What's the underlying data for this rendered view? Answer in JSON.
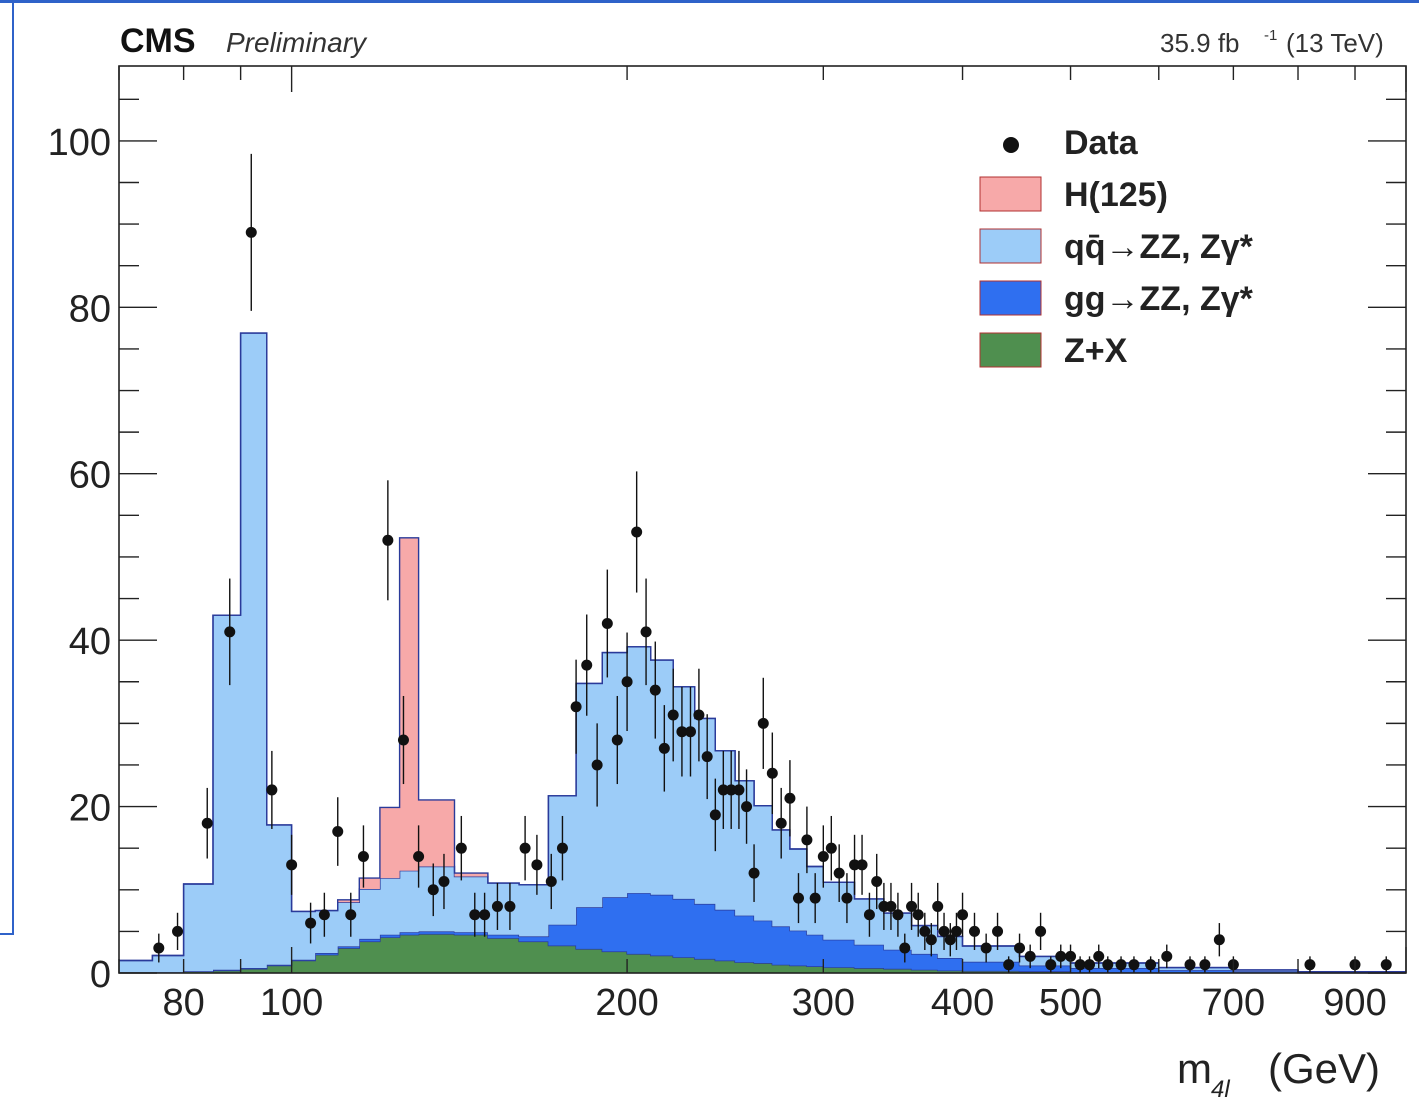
{
  "experiment": "CMS",
  "status": "Preliminary",
  "luminosity": "35.9 fb",
  "luminosity_exp": "-1",
  "energy": "(13 TeV)",
  "chart_data": {
    "type": "histogram",
    "xlabel_main": "m",
    "xlabel_sub": "4l",
    "xlabel_unit": "(GeV)",
    "ylabel": "",
    "x_scale": "log",
    "xlim": [
      70,
      1000
    ],
    "ylim": [
      0,
      109
    ],
    "grid": false,
    "legend_position": "top-right",
    "x_ticks": [
      80,
      100,
      200,
      300,
      400,
      500,
      700,
      900
    ],
    "y_ticks": [
      0,
      20,
      40,
      60,
      80,
      100
    ],
    "legend": [
      {
        "label": "Data",
        "kind": "marker",
        "color": "#111111"
      },
      {
        "label": "H(125)",
        "kind": "box",
        "color": "#f7a9a9"
      },
      {
        "label": "qq̄→ZZ, Zγ*",
        "kind": "box",
        "color": "#9cccf8"
      },
      {
        "label": "gg→ZZ, Zγ*",
        "kind": "box",
        "color": "#2f6ff0"
      },
      {
        "label": "Z+X",
        "kind": "box",
        "color": "#4f8f4f"
      }
    ],
    "bin_edges": [
      70,
      75,
      80,
      85,
      90,
      95,
      100,
      105,
      110,
      115,
      120,
      125,
      130,
      140,
      150,
      160,
      170,
      180,
      190,
      200,
      210,
      220,
      230,
      240,
      250,
      260,
      270,
      280,
      290,
      300,
      320,
      340,
      360,
      380,
      400,
      450,
      500,
      600,
      700,
      800,
      1000
    ],
    "stack": [
      {
        "name": "Z+X",
        "color": "#4f8f4f",
        "values": [
          0.1,
          0.1,
          0.2,
          0.3,
          0.5,
          0.9,
          1.5,
          2.2,
          3.0,
          3.8,
          4.3,
          4.6,
          4.7,
          4.6,
          4.2,
          3.8,
          3.3,
          2.9,
          2.6,
          2.3,
          2.1,
          1.9,
          1.7,
          1.5,
          1.3,
          1.2,
          1.0,
          0.9,
          0.8,
          0.7,
          0.6,
          0.5,
          0.4,
          0.3,
          0.25,
          0.2,
          0.1,
          0.05,
          0.02,
          0.01
        ]
      },
      {
        "name": "gg→ZZ, Zγ*",
        "color": "#2f6ff0",
        "values": [
          0.0,
          0.0,
          0.0,
          0.1,
          0.1,
          0.1,
          0.1,
          0.2,
          0.2,
          0.3,
          0.3,
          0.3,
          0.3,
          0.3,
          0.4,
          0.6,
          2.5,
          5.0,
          6.5,
          7.3,
          7.3,
          7.0,
          6.6,
          6.1,
          5.6,
          5.1,
          4.6,
          4.2,
          3.8,
          3.3,
          2.8,
          2.3,
          1.9,
          1.5,
          1.1,
          0.7,
          0.5,
          0.3,
          0.2,
          0.1
        ]
      },
      {
        "name": "qq̄→ZZ, Zγ*",
        "color": "#9cccf8",
        "values": [
          1.4,
          2.0,
          10.5,
          42.6,
          76.3,
          16.8,
          5.8,
          5.1,
          5.3,
          6.0,
          6.8,
          7.4,
          7.8,
          6.7,
          6.2,
          6.2,
          15.5,
          26.9,
          29.4,
          29.6,
          28.2,
          25.5,
          22.3,
          19.1,
          16.2,
          13.8,
          11.6,
          9.8,
          8.2,
          6.9,
          5.5,
          4.4,
          3.4,
          2.6,
          1.9,
          1.1,
          0.6,
          0.3,
          0.15,
          0.05
        ]
      },
      {
        "name": "H(125)",
        "color": "#f7a9a9",
        "values": [
          0.0,
          0.0,
          0.0,
          0.0,
          0.0,
          0.0,
          0.0,
          0.0,
          0.3,
          1.3,
          8.5,
          40.0,
          8.0,
          0.4,
          0.0,
          0.0,
          0.0,
          0.0,
          0.0,
          0.0,
          0.0,
          0.0,
          0.0,
          0.0,
          0.0,
          0.0,
          0.0,
          0.0,
          0.0,
          0.0,
          0.0,
          0.0,
          0.0,
          0.0,
          0.0,
          0.0,
          0.0,
          0.0,
          0.0,
          0.0
        ]
      }
    ],
    "data": [
      {
        "x": 76,
        "y": 3
      },
      {
        "x": 79,
        "y": 5
      },
      {
        "x": 84,
        "y": 18
      },
      {
        "x": 88,
        "y": 41
      },
      {
        "x": 92,
        "y": 89
      },
      {
        "x": 96,
        "y": 22
      },
      {
        "x": 100,
        "y": 13
      },
      {
        "x": 104,
        "y": 6
      },
      {
        "x": 107,
        "y": 7
      },
      {
        "x": 110,
        "y": 17
      },
      {
        "x": 113,
        "y": 7
      },
      {
        "x": 116,
        "y": 14
      },
      {
        "x": 122,
        "y": 52
      },
      {
        "x": 126,
        "y": 28
      },
      {
        "x": 130,
        "y": 14
      },
      {
        "x": 134,
        "y": 10
      },
      {
        "x": 137,
        "y": 11
      },
      {
        "x": 142,
        "y": 15
      },
      {
        "x": 146,
        "y": 7
      },
      {
        "x": 149,
        "y": 7
      },
      {
        "x": 153,
        "y": 8
      },
      {
        "x": 157,
        "y": 8
      },
      {
        "x": 162,
        "y": 15
      },
      {
        "x": 166,
        "y": 13
      },
      {
        "x": 171,
        "y": 11
      },
      {
        "x": 175,
        "y": 15
      },
      {
        "x": 180,
        "y": 32
      },
      {
        "x": 184,
        "y": 37
      },
      {
        "x": 188,
        "y": 25
      },
      {
        "x": 192,
        "y": 42
      },
      {
        "x": 196,
        "y": 28
      },
      {
        "x": 200,
        "y": 35
      },
      {
        "x": 204,
        "y": 53
      },
      {
        "x": 208,
        "y": 41
      },
      {
        "x": 212,
        "y": 34
      },
      {
        "x": 216,
        "y": 27
      },
      {
        "x": 220,
        "y": 31
      },
      {
        "x": 224,
        "y": 29
      },
      {
        "x": 228,
        "y": 29
      },
      {
        "x": 232,
        "y": 31
      },
      {
        "x": 236,
        "y": 26
      },
      {
        "x": 240,
        "y": 19
      },
      {
        "x": 244,
        "y": 22
      },
      {
        "x": 248,
        "y": 22
      },
      {
        "x": 252,
        "y": 22
      },
      {
        "x": 256,
        "y": 20
      },
      {
        "x": 260,
        "y": 12
      },
      {
        "x": 265,
        "y": 30
      },
      {
        "x": 270,
        "y": 24
      },
      {
        "x": 275,
        "y": 18
      },
      {
        "x": 280,
        "y": 21
      },
      {
        "x": 285,
        "y": 9
      },
      {
        "x": 290,
        "y": 16
      },
      {
        "x": 295,
        "y": 9
      },
      {
        "x": 300,
        "y": 14
      },
      {
        "x": 305,
        "y": 15
      },
      {
        "x": 310,
        "y": 12
      },
      {
        "x": 315,
        "y": 9
      },
      {
        "x": 320,
        "y": 13
      },
      {
        "x": 325,
        "y": 13
      },
      {
        "x": 330,
        "y": 7
      },
      {
        "x": 335,
        "y": 11
      },
      {
        "x": 340,
        "y": 8
      },
      {
        "x": 345,
        "y": 8
      },
      {
        "x": 350,
        "y": 7
      },
      {
        "x": 355,
        "y": 3
      },
      {
        "x": 360,
        "y": 8
      },
      {
        "x": 365,
        "y": 7
      },
      {
        "x": 370,
        "y": 5
      },
      {
        "x": 375,
        "y": 4
      },
      {
        "x": 380,
        "y": 8
      },
      {
        "x": 385,
        "y": 5
      },
      {
        "x": 390,
        "y": 4
      },
      {
        "x": 395,
        "y": 5
      },
      {
        "x": 400,
        "y": 7
      },
      {
        "x": 410,
        "y": 5
      },
      {
        "x": 420,
        "y": 3
      },
      {
        "x": 430,
        "y": 5
      },
      {
        "x": 440,
        "y": 1
      },
      {
        "x": 450,
        "y": 3
      },
      {
        "x": 460,
        "y": 2
      },
      {
        "x": 470,
        "y": 5
      },
      {
        "x": 480,
        "y": 1
      },
      {
        "x": 490,
        "y": 2
      },
      {
        "x": 500,
        "y": 2
      },
      {
        "x": 510,
        "y": 1
      },
      {
        "x": 520,
        "y": 1
      },
      {
        "x": 530,
        "y": 2
      },
      {
        "x": 540,
        "y": 1
      },
      {
        "x": 555,
        "y": 1
      },
      {
        "x": 570,
        "y": 1
      },
      {
        "x": 590,
        "y": 1
      },
      {
        "x": 610,
        "y": 2
      },
      {
        "x": 640,
        "y": 1
      },
      {
        "x": 660,
        "y": 1
      },
      {
        "x": 680,
        "y": 4
      },
      {
        "x": 700,
        "y": 1
      },
      {
        "x": 820,
        "y": 1
      },
      {
        "x": 900,
        "y": 1
      },
      {
        "x": 960,
        "y": 1
      }
    ]
  }
}
